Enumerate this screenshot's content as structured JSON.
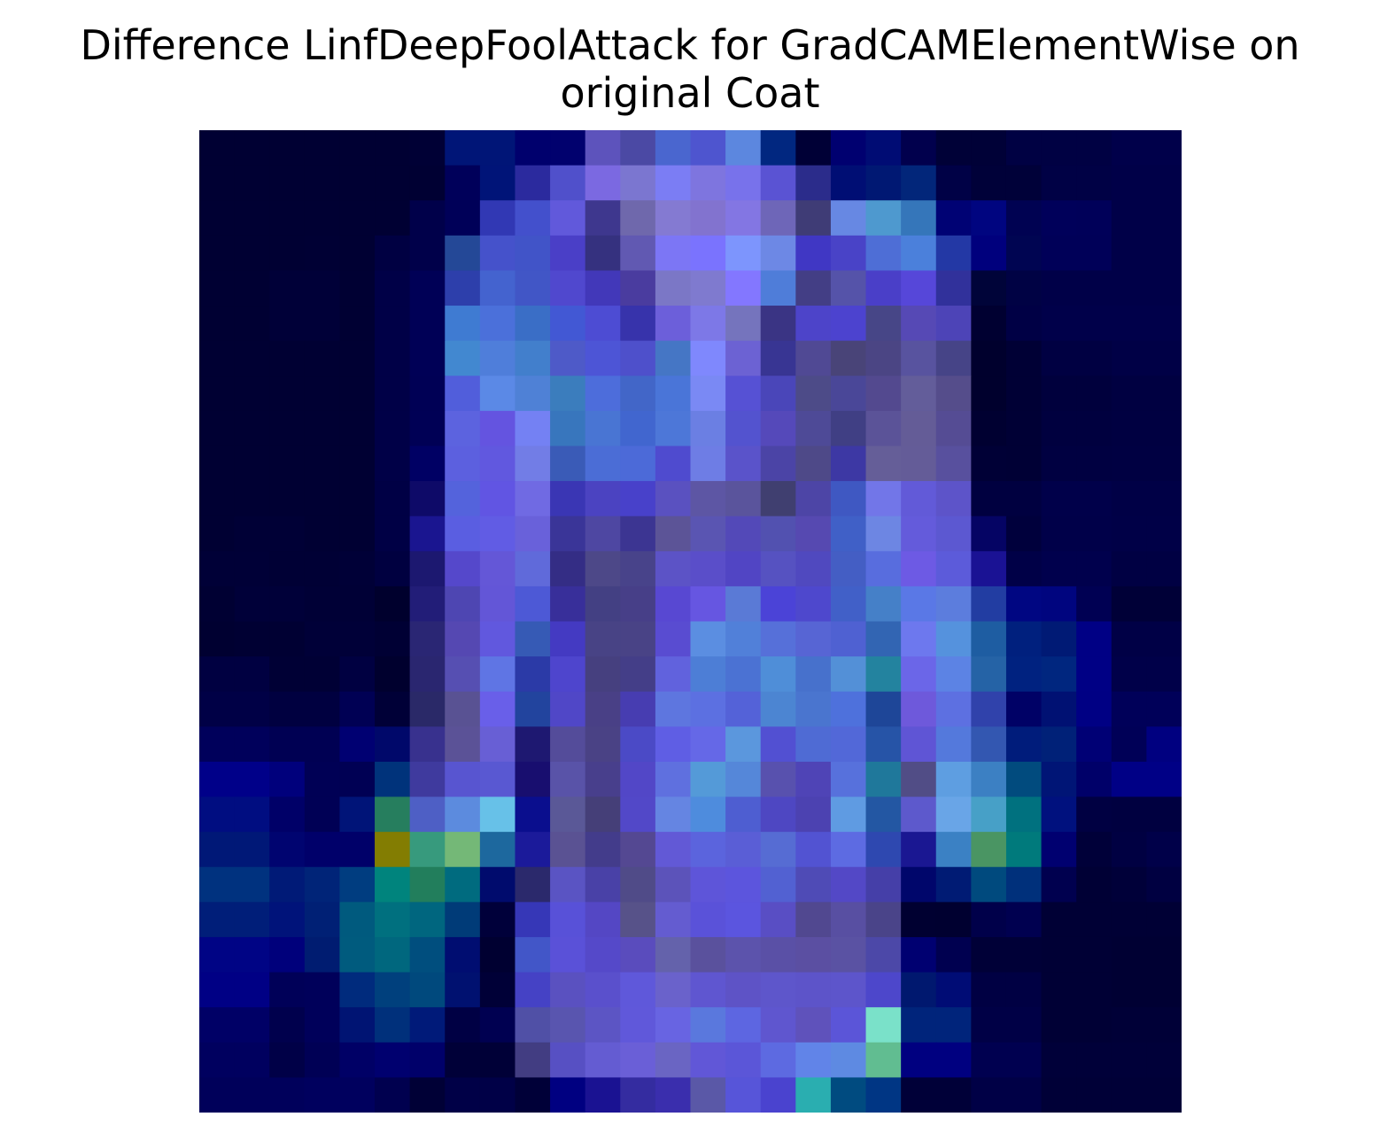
{
  "chart_data": {
    "type": "heatmap",
    "title_lines": [
      "Difference LinfDeepFoolAttack for GradCAMElementWise on",
      "original Coat"
    ],
    "axes_visible": false,
    "rows": 28,
    "cols": 28,
    "cells": [
      [
        "#000033",
        "#000033",
        "#000033",
        "#000033",
        "#000033",
        "#000033",
        "#000035",
        "#001577",
        "#001577",
        "#00006d",
        "#01016e",
        "#5d53bc",
        "#4b49a4",
        "#4a66cf",
        "#4e55cf",
        "#5c87df",
        "#012780",
        "#000036",
        "#000070",
        "#000c74",
        "#01004d",
        "#000137",
        "#000137",
        "#000143",
        "#000143",
        "#000143",
        "#00004a",
        "#00004a"
      ],
      [
        "#000033",
        "#000033",
        "#000033",
        "#000033",
        "#000033",
        "#000033",
        "#000033",
        "#00005a",
        "#001478",
        "#2b2a9e",
        "#5050cb",
        "#7b69e1",
        "#7b76d0",
        "#7b7df4",
        "#7e75df",
        "#7872eb",
        "#5a53d3",
        "#2b2c8b",
        "#000e74",
        "#001873",
        "#02267a",
        "#000146",
        "#000139",
        "#000139",
        "#000145",
        "#000145",
        "#000048",
        "#000048"
      ],
      [
        "#000033",
        "#000033",
        "#000033",
        "#000033",
        "#000033",
        "#000033",
        "#00004a",
        "#000058",
        "#3138b4",
        "#4350cc",
        "#6159db",
        "#3e378e",
        "#6f68ac",
        "#847ad2",
        "#8273cf",
        "#8376e3",
        "#6e66b8",
        "#3f3c76",
        "#6788e3",
        "#4e99cf",
        "#3576ba",
        "#000274",
        "#000580",
        "#000252",
        "#00005a",
        "#000059",
        "#000048",
        "#000048"
      ],
      [
        "#000033",
        "#000033",
        "#000033",
        "#000034",
        "#000033",
        "#000042",
        "#00004a",
        "#244897",
        "#4552cb",
        "#4154c8",
        "#4a3fc7",
        "#35317f",
        "#6159b2",
        "#7c76f5",
        "#7a73fe",
        "#7d95fd",
        "#6d88e5",
        "#4037c4",
        "#4943c7",
        "#4e6ed6",
        "#4b80db",
        "#2338a5",
        "#00007d",
        "#000552",
        "#000058",
        "#000058",
        "#000048",
        "#000048"
      ],
      [
        "#000033",
        "#000033",
        "#000038",
        "#000038",
        "#000033",
        "#000047",
        "#000056",
        "#2d3fab",
        "#4463cf",
        "#4156c6",
        "#5048ce",
        "#4238b9",
        "#4a3c9f",
        "#7b77c6",
        "#7f7acf",
        "#8377ff",
        "#4f7dd9",
        "#433e85",
        "#5553a9",
        "#4a3fc8",
        "#5647d9",
        "#31319b",
        "#000439",
        "#000244",
        "#000048",
        "#000048",
        "#000048",
        "#000048"
      ],
      [
        "#000033",
        "#000033",
        "#000038",
        "#000038",
        "#000033",
        "#000047",
        "#000056",
        "#3f7bd2",
        "#4b70da",
        "#3a6ec6",
        "#4258d4",
        "#4d4cd3",
        "#3733ab",
        "#6c5fda",
        "#7d78e7",
        "#7574bd",
        "#3a3484",
        "#4d44c9",
        "#4c43cf",
        "#474687",
        "#5649b5",
        "#4d44b7",
        "#000031",
        "#000045",
        "#00004a",
        "#00004a",
        "#00004a",
        "#00004a"
      ],
      [
        "#000033",
        "#000033",
        "#000033",
        "#000033",
        "#000033",
        "#000047",
        "#000056",
        "#4288d0",
        "#4f7eda",
        "#427fcc",
        "#4e5ac8",
        "#4d55d6",
        "#4e50cb",
        "#4576c5",
        "#7f88fd",
        "#6c62d3",
        "#383593",
        "#504994",
        "#494478",
        "#4b4584",
        "#58539f",
        "#464487",
        "#00002d",
        "#000035",
        "#000042",
        "#000042",
        "#000046",
        "#000046"
      ],
      [
        "#000033",
        "#000033",
        "#000033",
        "#000033",
        "#000033",
        "#000047",
        "#000055",
        "#515edb",
        "#5b89e6",
        "#4f81d6",
        "#3b7dbd",
        "#4d6ddb",
        "#4266c8",
        "#4a75d8",
        "#7a89f4",
        "#5651d4",
        "#4a46b9",
        "#4d4b88",
        "#4a4798",
        "#53498f",
        "#635d9a",
        "#554d8b",
        "#00002d",
        "#000035",
        "#00003d",
        "#00003d",
        "#000041",
        "#000041"
      ],
      [
        "#000033",
        "#000033",
        "#000033",
        "#000033",
        "#000033",
        "#000047",
        "#000055",
        "#5c63df",
        "#6454e0",
        "#7481f3",
        "#3876bd",
        "#4975d3",
        "#4166cf",
        "#4d77d8",
        "#6b7fe3",
        "#5353cf",
        "#5549ba",
        "#4e4a97",
        "#403f84",
        "#5b5398",
        "#645c97",
        "#554c94",
        "#000031",
        "#000035",
        "#00003f",
        "#00003f",
        "#000041",
        "#000041"
      ],
      [
        "#000033",
        "#000033",
        "#000033",
        "#000033",
        "#000033",
        "#000047",
        "#000064",
        "#5c60df",
        "#6158df",
        "#727de6",
        "#3a5bb7",
        "#4b6dd6",
        "#4c6ad8",
        "#4f4bcf",
        "#6e7de5",
        "#5a53ca",
        "#4b44a6",
        "#4e4988",
        "#3d38a4",
        "#655e98",
        "#645c98",
        "#58509e",
        "#000036",
        "#000035",
        "#000041",
        "#000041",
        "#000042",
        "#000042"
      ],
      [
        "#000033",
        "#000033",
        "#000033",
        "#000033",
        "#000033",
        "#000045",
        "#0e0a68",
        "#5463dc",
        "#6155e3",
        "#706ae3",
        "#3a36b4",
        "#4b43c1",
        "#4841ca",
        "#5a51c0",
        "#5d56a4",
        "#5a549c",
        "#403f70",
        "#4d45a6",
        "#3f58c2",
        "#7276e8",
        "#625ad8",
        "#5d54c9",
        "#000040",
        "#000040",
        "#00004a",
        "#00004a",
        "#000046",
        "#000046"
      ],
      [
        "#000033",
        "#000036",
        "#000036",
        "#000033",
        "#000033",
        "#000045",
        "#1a1590",
        "#5a5ee1",
        "#615ce4",
        "#6961da",
        "#3a3598",
        "#4e47a2",
        "#3c3592",
        "#5c5497",
        "#5a55b2",
        "#5349b8",
        "#5251b0",
        "#5649b1",
        "#4060c7",
        "#6d86e3",
        "#645bdb",
        "#5c58d1",
        "#050464",
        "#00003c",
        "#000049",
        "#000049",
        "#000047",
        "#000047"
      ],
      [
        "#000037",
        "#000037",
        "#000035",
        "#000035",
        "#000037",
        "#000040",
        "#1c1870",
        "#5548cb",
        "#6457d7",
        "#606ada",
        "#342d85",
        "#4d4888",
        "#48438a",
        "#5c53c6",
        "#5a4ec9",
        "#5145c4",
        "#5652c1",
        "#5049bf",
        "#445ec4",
        "#586dde",
        "#6d5ae4",
        "#5c5bda",
        "#1a1294",
        "#000047",
        "#00004d",
        "#00004d",
        "#000043",
        "#000043"
      ],
      [
        "#000033",
        "#000039",
        "#000039",
        "#000036",
        "#000036",
        "#00002d",
        "#221d78",
        "#4e46b2",
        "#6356d7",
        "#4d59d6",
        "#382f9a",
        "#434083",
        "#473f88",
        "#5848d2",
        "#6656e1",
        "#5a7ad6",
        "#4b43d7",
        "#4e48cd",
        "#4160c8",
        "#4580c8",
        "#5a78e6",
        "#5c7ddd",
        "#223da2",
        "#000682",
        "#00057f",
        "#000053",
        "#000037",
        "#000037"
      ],
      [
        "#000031",
        "#000033",
        "#000033",
        "#000038",
        "#000038",
        "#000034",
        "#2a2674",
        "#5548b2",
        "#6158de",
        "#365ab5",
        "#443ac2",
        "#484385",
        "#494386",
        "#594cd1",
        "#5b8ee1",
        "#5180d9",
        "#5670d9",
        "#5765d4",
        "#4f61d2",
        "#3265b3",
        "#6d78ee",
        "#5592dd",
        "#1e5da2",
        "#00207e",
        "#001a75",
        "#000085",
        "#000046",
        "#000046"
      ],
      [
        "#000041",
        "#000041",
        "#000035",
        "#000035",
        "#000041",
        "#00002e",
        "#2a2670",
        "#564fb2",
        "#5f75e4",
        "#2b3aa7",
        "#4e45cd",
        "#46407f",
        "#443e88",
        "#6162dd",
        "#4d7ed6",
        "#4b72d3",
        "#4f8ed8",
        "#4771cc",
        "#5390d7",
        "#23839f",
        "#6b66e8",
        "#5c83e4",
        "#2563a6",
        "#002280",
        "#00267f",
        "#000085",
        "#000049",
        "#000049"
      ],
      [
        "#000046",
        "#000046",
        "#000040",
        "#000040",
        "#000054",
        "#000037",
        "#2a2968",
        "#595293",
        "#695fe9",
        "#22449e",
        "#5047c7",
        "#494086",
        "#473db1",
        "#5e76df",
        "#5c70e1",
        "#5462d8",
        "#4c85d2",
        "#4a75cf",
        "#4e71dc",
        "#1e4698",
        "#6e59db",
        "#5d70e1",
        "#3042ab",
        "#000166",
        "#001173",
        "#000084",
        "#000059",
        "#000059"
      ],
      [
        "#00005b",
        "#00005b",
        "#000053",
        "#000053",
        "#000072",
        "#00086a",
        "#38318e",
        "#5b5297",
        "#685fd5",
        "#1e1871",
        "#544c9a",
        "#4a4285",
        "#4b4ac6",
        "#5f5ee4",
        "#6568e7",
        "#5b97dd",
        "#5250d2",
        "#4f6bd4",
        "#5268d8",
        "#2654a7",
        "#5f55d5",
        "#5479dc",
        "#3357b1",
        "#001c7b",
        "#002178",
        "#000075",
        "#000057",
        "#000080"
      ],
      [
        "#000089",
        "#000089",
        "#00007c",
        "#000055",
        "#000054",
        "#00337b",
        "#3f3a9e",
        "#5855d0",
        "#5958d2",
        "#180e6f",
        "#5953a8",
        "#483f8c",
        "#5247c7",
        "#5f70df",
        "#549ad8",
        "#5587d9",
        "#5851ae",
        "#4f44b6",
        "#5771dc",
        "#1f789b",
        "#514d86",
        "#5e9ee1",
        "#3c80c3",
        "#014b7e",
        "#001576",
        "#000069",
        "#000086",
        "#000086"
      ],
      [
        "#000d81",
        "#000d81",
        "#000068",
        "#000055",
        "#001478",
        "#267e5e",
        "#4e5fc5",
        "#5c8bde",
        "#67c1e8",
        "#0a0e8e",
        "#5a5897",
        "#453f78",
        "#5248c8",
        "#6585e2",
        "#4e8cdd",
        "#4e5ed1",
        "#4e47c2",
        "#4c42b1",
        "#5f9be2",
        "#2357a3",
        "#5d59cc",
        "#69a5e7",
        "#47a0c7",
        "#00717f",
        "#00117e",
        "#000042",
        "#000040",
        "#000040"
      ],
      [
        "#001877",
        "#001877",
        "#000470",
        "#00006a",
        "#000069",
        "#837d02",
        "#379a7d",
        "#74b877",
        "#1d689e",
        "#1b1a9a",
        "#5a5293",
        "#433c8b",
        "#544892",
        "#6259d6",
        "#5b64dd",
        "#5a5ed6",
        "#566cd3",
        "#5253d2",
        "#5d6be2",
        "#2e48b0",
        "#1a1792",
        "#3b81c4",
        "#4a9563",
        "#007a7c",
        "#000070",
        "#000039",
        "#000042",
        "#000049"
      ],
      [
        "#00327f",
        "#00327f",
        "#001a77",
        "#002478",
        "#003d80",
        "#00847d",
        "#227e5c",
        "#006b7f",
        "#000b6d",
        "#2b296c",
        "#5a54c3",
        "#4941a7",
        "#504b88",
        "#5c53ba",
        "#5e55d9",
        "#5c55dd",
        "#5261d2",
        "#4f4bb6",
        "#5348c6",
        "#453fa8",
        "#00066b",
        "#001b74",
        "#004a7e",
        "#00307b",
        "#00004f",
        "#000035",
        "#000039",
        "#000041"
      ],
      [
        "#001e79",
        "#001e79",
        "#00137a",
        "#002075",
        "#005a7e",
        "#00707f",
        "#00667f",
        "#003b78",
        "#00003a",
        "#3637b7",
        "#5851d8",
        "#5447c4",
        "#575289",
        "#645cd0",
        "#5a52d9",
        "#5b55df",
        "#594ec4",
        "#514890",
        "#584fa2",
        "#4a4489",
        "#000031",
        "#000030",
        "#00004a",
        "#000050",
        "#000035",
        "#000035",
        "#000035",
        "#000035"
      ],
      [
        "#000485",
        "#000485",
        "#00007b",
        "#001c71",
        "#005b7e",
        "#00677e",
        "#004e7e",
        "#000d71",
        "#000031",
        "#4256c8",
        "#5a51d8",
        "#5549c9",
        "#5a4cbd",
        "#6462ab",
        "#5a519d",
        "#5c53ac",
        "#5a50a6",
        "#5b4fa2",
        "#5a52a3",
        "#4c48a8",
        "#000071",
        "#000050",
        "#000037",
        "#000037",
        "#000035",
        "#000035",
        "#000033",
        "#000033"
      ],
      [
        "#000085",
        "#000085",
        "#000058",
        "#00005a",
        "#002b7d",
        "#00407d",
        "#00497d",
        "#001170",
        "#000037",
        "#4542c5",
        "#5a51c0",
        "#5a50cc",
        "#5f58da",
        "#6a62cb",
        "#5f56d0",
        "#5e53c6",
        "#5e56cb",
        "#5d54c9",
        "#5d55cb",
        "#4d47cb",
        "#00186f",
        "#000c75",
        "#000043",
        "#000043",
        "#000035",
        "#000035",
        "#000033",
        "#000033"
      ],
      [
        "#000066",
        "#000066",
        "#00004d",
        "#00005a",
        "#001473",
        "#00307b",
        "#001a79",
        "#000044",
        "#000051",
        "#5050a6",
        "#5955af",
        "#5c55c4",
        "#6058da",
        "#6864e2",
        "#5a78dd",
        "#5d66e1",
        "#5f56cf",
        "#5f52bb",
        "#5b55d8",
        "#7ae1c9",
        "#00247b",
        "#00247b",
        "#000046",
        "#000046",
        "#000035",
        "#000035",
        "#000037",
        "#000037"
      ],
      [
        "#00005f",
        "#00005f",
        "#000047",
        "#000055",
        "#000066",
        "#00006f",
        "#00006a",
        "#000038",
        "#000037",
        "#423d82",
        "#5750c3",
        "#645cd2",
        "#6a5fd7",
        "#6a65c3",
        "#6157d7",
        "#5b56d8",
        "#5d6ae1",
        "#6184e8",
        "#5e8ae2",
        "#61bd91",
        "#000080",
        "#000080",
        "#000050",
        "#000050",
        "#000039",
        "#000039",
        "#000039",
        "#000039"
      ],
      [
        "#00005a",
        "#00005a",
        "#00005b",
        "#00005e",
        "#00005e",
        "#00004f",
        "#000036",
        "#000047",
        "#000047",
        "#000038",
        "#000081",
        "#1a1292",
        "#342ca0",
        "#3a2ead",
        "#5a58a7",
        "#5755d9",
        "#4a43cf",
        "#2aaeb0",
        "#004b80",
        "#003684",
        "#000038",
        "#000038",
        "#000046",
        "#000046",
        "#000037",
        "#000037",
        "#000037",
        "#000037"
      ]
    ]
  }
}
